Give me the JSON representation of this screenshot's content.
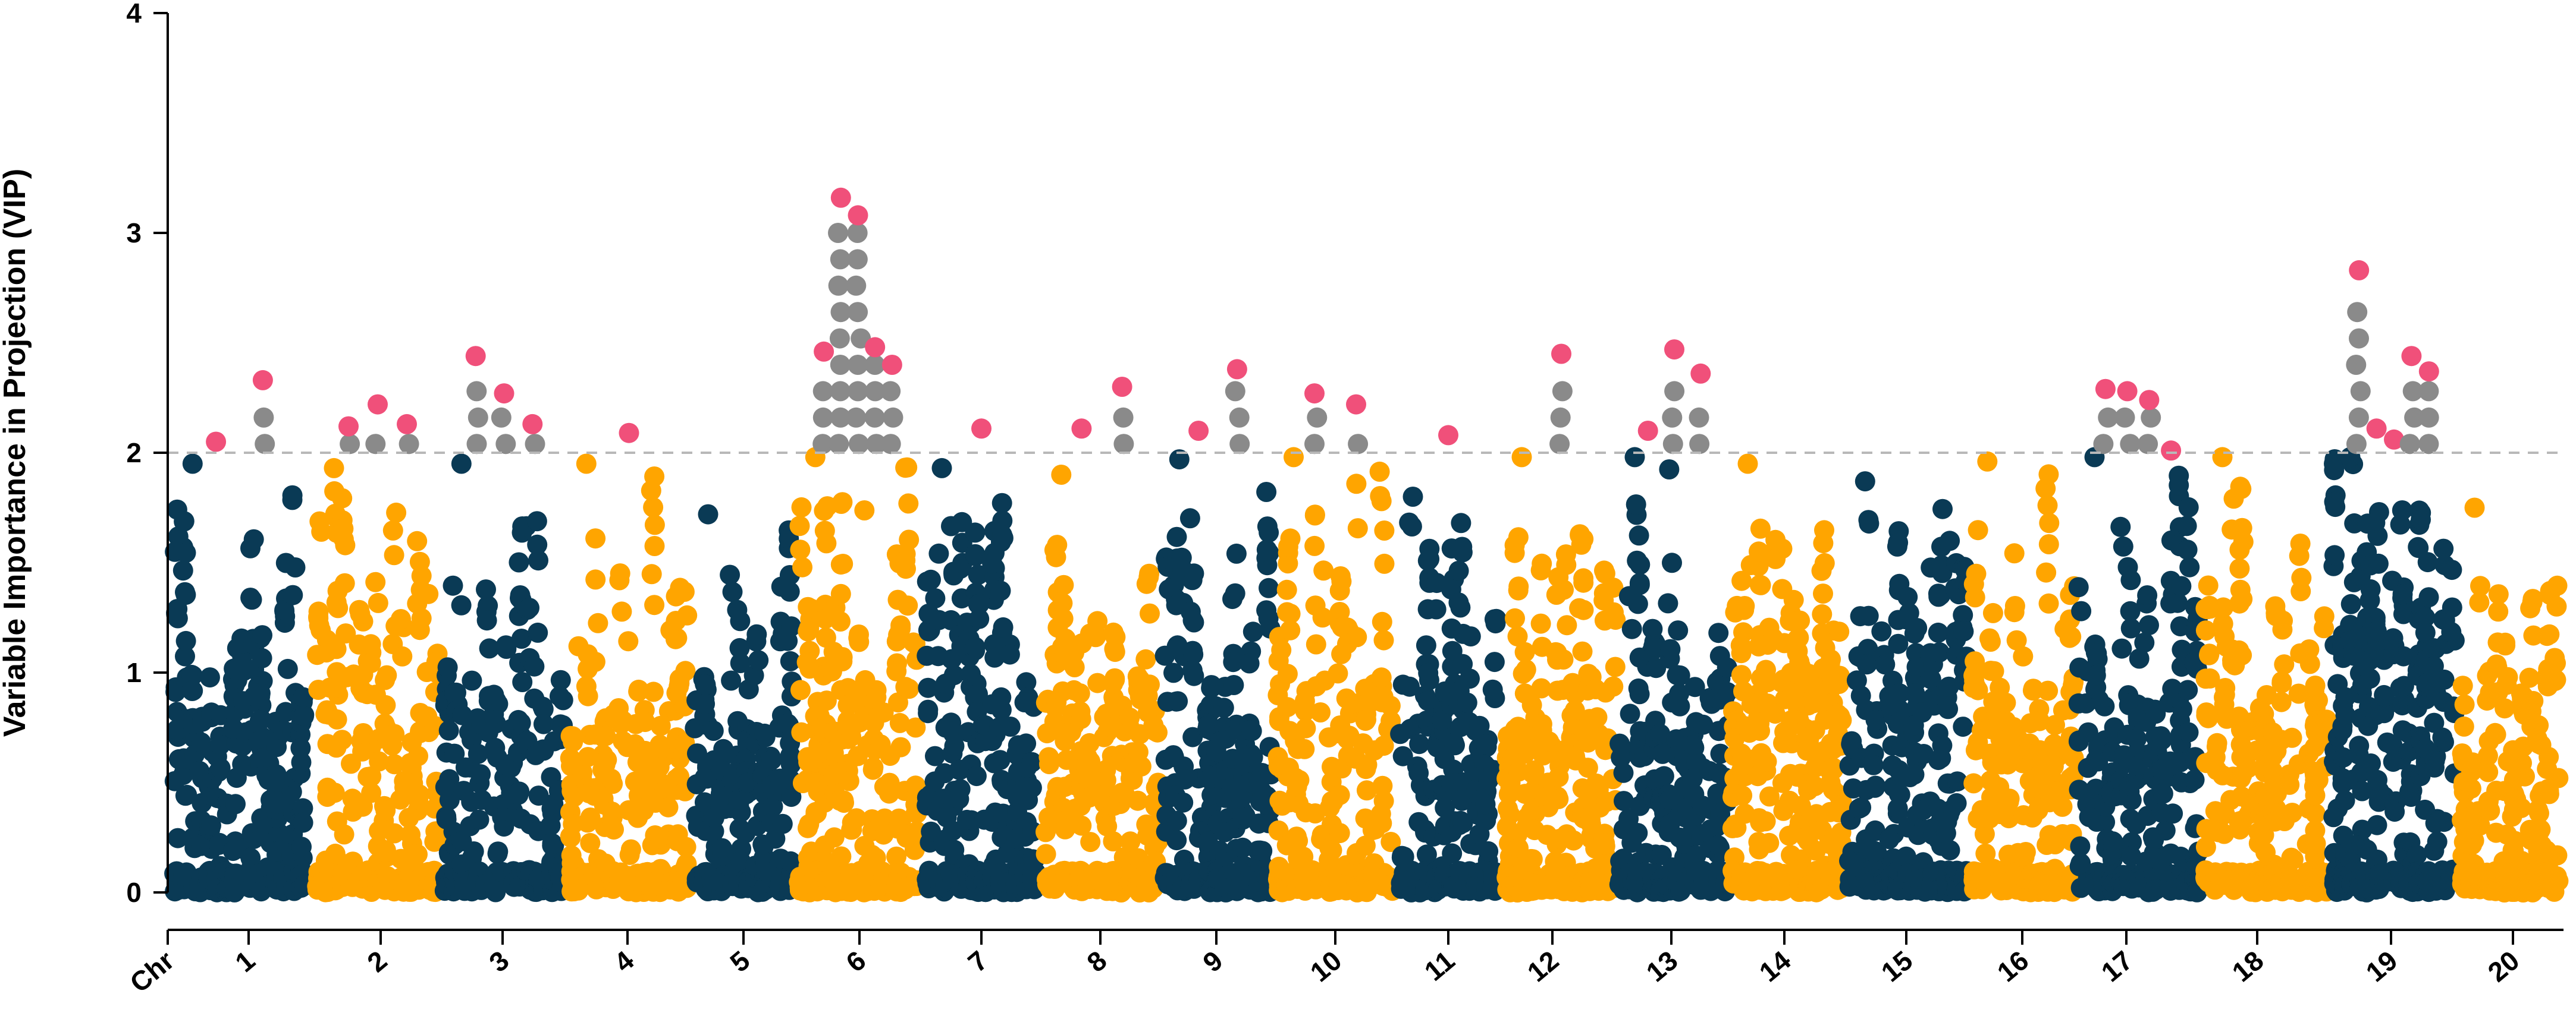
{
  "chart_data": {
    "type": "scatter",
    "subtype": "manhattan",
    "title": "",
    "xlabel": "",
    "ylabel": "Variable Importance in Projection (VIP)",
    "x_axis_start_label": "Chr",
    "ylim": [
      0,
      4
    ],
    "yticks": [
      0,
      1,
      2,
      3,
      4
    ],
    "threshold": 2,
    "grid": false,
    "legend": "none",
    "colors": {
      "dark": "#0a3a55",
      "light": "#ffa500",
      "above_threshold": "#8a8a8a",
      "peak": "#f0507a",
      "threshold_line": "#b8b8b8"
    },
    "chromosomes": [
      {
        "label": "1",
        "color": "dark",
        "max": 1.95,
        "peaks": [
          2.05,
          2.33
        ]
      },
      {
        "label": "2",
        "color": "light",
        "max": 1.93,
        "peaks": [
          2.12,
          2.22,
          2.13
        ]
      },
      {
        "label": "3",
        "color": "dark",
        "max": 1.95,
        "peaks": [
          2.44,
          2.27,
          2.13
        ]
      },
      {
        "label": "4",
        "color": "light",
        "max": 1.95,
        "peaks": [
          2.09
        ]
      },
      {
        "label": "5",
        "color": "dark",
        "max": 1.72,
        "peaks": []
      },
      {
        "label": "6",
        "color": "light",
        "max": 1.98,
        "peaks": [
          2.46,
          3.16,
          3.08,
          2.48,
          2.4
        ]
      },
      {
        "label": "7",
        "color": "dark",
        "max": 1.93,
        "peaks": [
          2.11
        ]
      },
      {
        "label": "8",
        "color": "light",
        "max": 1.9,
        "peaks": [
          2.11,
          2.3
        ]
      },
      {
        "label": "9",
        "color": "dark",
        "max": 1.97,
        "peaks": [
          2.1,
          2.38
        ]
      },
      {
        "label": "10",
        "color": "light",
        "max": 1.98,
        "peaks": [
          2.27,
          2.22
        ]
      },
      {
        "label": "11",
        "color": "dark",
        "max": 1.8,
        "peaks": [
          2.08
        ]
      },
      {
        "label": "12",
        "color": "light",
        "max": 1.98,
        "peaks": [
          2.45
        ]
      },
      {
        "label": "13",
        "color": "dark",
        "max": 1.98,
        "peaks": [
          2.1,
          2.47,
          2.36
        ]
      },
      {
        "label": "14",
        "color": "light",
        "max": 1.95,
        "peaks": []
      },
      {
        "label": "15",
        "color": "dark",
        "max": 1.87,
        "peaks": []
      },
      {
        "label": "16",
        "color": "light",
        "max": 1.96,
        "peaks": []
      },
      {
        "label": "17",
        "color": "dark",
        "max": 1.98,
        "peaks": [
          2.29,
          2.28,
          2.24,
          2.01
        ]
      },
      {
        "label": "18",
        "color": "light",
        "max": 1.98,
        "peaks": []
      },
      {
        "label": "19",
        "color": "dark",
        "max": 1.98,
        "peaks": [
          2.83,
          2.11,
          2.06,
          2.44,
          2.37
        ]
      },
      {
        "label": "20",
        "color": "light",
        "max": 1.75,
        "peaks": []
      }
    ]
  }
}
